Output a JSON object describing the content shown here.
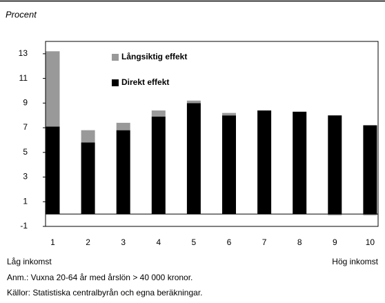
{
  "chart_data": {
    "type": "stacked_bar",
    "y_unit": "Procent",
    "categories": [
      "1",
      "2",
      "3",
      "4",
      "5",
      "6",
      "7",
      "8",
      "9",
      "10"
    ],
    "series": [
      {
        "name": "Direkt effekt",
        "color": "#000000",
        "values": [
          7.1,
          5.8,
          6.8,
          7.9,
          9.0,
          8.0,
          8.4,
          8.3,
          8.0,
          7.2
        ]
      },
      {
        "name": "Långsiktig effekt",
        "color": "#999999",
        "values": [
          6.1,
          1.0,
          0.6,
          0.5,
          0.2,
          0.2,
          0,
          0,
          -0.1,
          -0.1
        ]
      }
    ],
    "ylim": [
      -1,
      14
    ],
    "yticks": [
      -1,
      1,
      3,
      5,
      7,
      9,
      11,
      13
    ],
    "x_end_labels": [
      "Låg inkomst",
      "Hög inkomst"
    ],
    "notes": [
      "Anm.: Vuxna 20-64 år med årslön > 40 000 kronor.",
      "Källor: Statistiska centralbyrån och egna beräkningar."
    ]
  }
}
